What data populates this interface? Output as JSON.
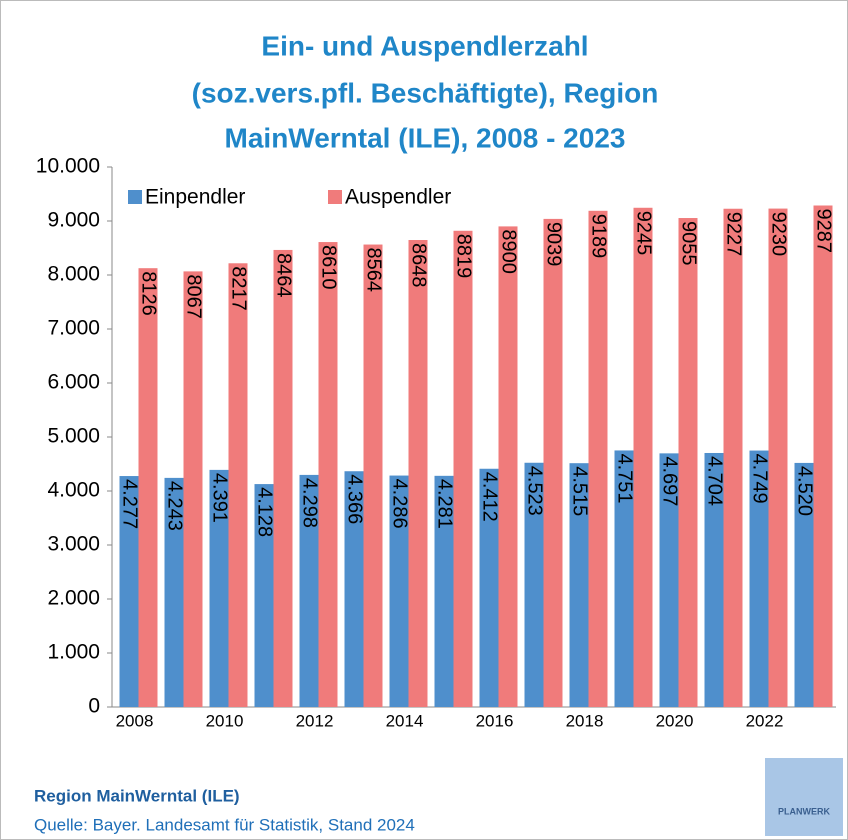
{
  "chart_data": {
    "type": "bar",
    "title_lines": [
      "Ein- und Auspendlerzahl",
      "(soz.vers.pfl. Beschäftigte), Region",
      "MainWerntal (ILE), 2008 - 2023"
    ],
    "categories": [
      "2008",
      null,
      "2010",
      null,
      "2012",
      null,
      "2014",
      null,
      "2016",
      null,
      "2018",
      null,
      "2020",
      null,
      "2022",
      null
    ],
    "series": [
      {
        "name": "Einpendler",
        "color": "#4f8fcc",
        "values": [
          4277,
          4243,
          4391,
          4128,
          4298,
          4366,
          4286,
          4281,
          4412,
          4523,
          4515,
          4751,
          4697,
          4704,
          4749,
          4520
        ],
        "value_labels": [
          "4.277",
          "4.243",
          "4.391",
          "4.128",
          "4.298",
          "4.366",
          "4.286",
          "4.281",
          "4.412",
          "4.523",
          "4.515",
          "4.751",
          "4.697",
          "4.704",
          "4.749",
          "4.520"
        ]
      },
      {
        "name": "Auspendler",
        "color": "#f07b7b",
        "values": [
          8126,
          8067,
          8217,
          8464,
          8610,
          8564,
          8648,
          8819,
          8900,
          9039,
          9189,
          9245,
          9055,
          9227,
          9230,
          9287
        ]
      }
    ],
    "ylim": [
      0,
      10000
    ],
    "yticks": [
      0,
      {
        "value": 1000,
        "label": "1.000"
      },
      {
        "value": 2000,
        "label": "2.000"
      },
      {
        "value": 3000,
        "label": "3.000"
      },
      {
        "value": 4000,
        "label": "4.000"
      },
      {
        "value": 5000,
        "label": "5.000"
      },
      {
        "value": 6000,
        "label": "6.000"
      },
      {
        "value": 7000,
        "label": "7.000"
      },
      {
        "value": 8000,
        "label": "8.000"
      },
      {
        "value": 9000,
        "label": "9.000"
      },
      {
        "value": 10000,
        "label": "10.000"
      }
    ],
    "region": "Region MainWerntal (ILE)",
    "source": "Quelle: Bayer. Landesamt für Statistik, Stand 2024",
    "logo": "PLANWERK"
  }
}
